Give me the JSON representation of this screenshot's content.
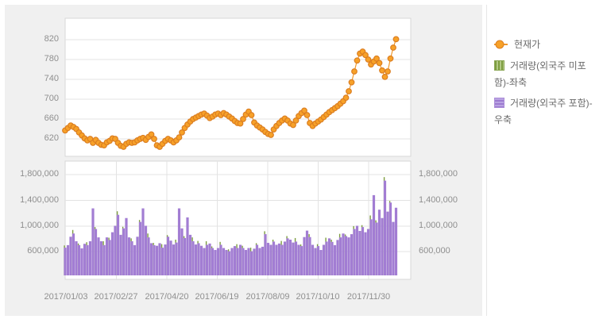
{
  "colors": {
    "price_fill": "#F7A128",
    "price_stroke": "#DB7E22",
    "price_line": "#EF982C",
    "volume_purple": "#A27DD3",
    "volume_green": "#7D9D40",
    "gridline": "#e3e3e3",
    "plot_border": "#d7d7d7",
    "axis_text": "#8f8f8f"
  },
  "legend": {
    "items": [
      {
        "label": "현재가",
        "marker": "orange-line-dot-marker",
        "color": "#F7A128"
      },
      {
        "label": "거래량(외국주 미포함)-좌축",
        "marker": "green-striped-swatch",
        "color": "#7D9D40"
      },
      {
        "label": "거래량(외국주 포함)-우축",
        "marker": "purple-striped-swatch",
        "color": "#A27DD3"
      }
    ]
  },
  "chart_data": [
    {
      "type": "line",
      "name": "현재가",
      "marker": "circle",
      "color": "#F7A128",
      "y_ticks": [
        620,
        660,
        700,
        740,
        780,
        820
      ],
      "y_tick_labels": [
        "820",
        "780",
        "740",
        "700",
        "660",
        "620"
      ],
      "ylim": [
        584,
        862
      ],
      "grid": "horizontal",
      "values": [
        637,
        642,
        647,
        644,
        640,
        633,
        627,
        621,
        617,
        620,
        612,
        618,
        612,
        608,
        607,
        613,
        616,
        621,
        620,
        612,
        606,
        604,
        610,
        613,
        612,
        613,
        617,
        620,
        622,
        618,
        624,
        629,
        620,
        607,
        604,
        610,
        616,
        620,
        617,
        613,
        617,
        623,
        633,
        642,
        649,
        655,
        660,
        663,
        666,
        669,
        671,
        667,
        662,
        665,
        669,
        671,
        668,
        672,
        669,
        665,
        661,
        656,
        652,
        651,
        660,
        669,
        675,
        668,
        653,
        647,
        643,
        639,
        634,
        630,
        628,
        639,
        646,
        652,
        657,
        661,
        657,
        651,
        648,
        657,
        666,
        672,
        677,
        668,
        652,
        646,
        651,
        655,
        659,
        664,
        669,
        674,
        678,
        682,
        686,
        691,
        696,
        703,
        716,
        734,
        756,
        778,
        792,
        796,
        789,
        780,
        770,
        776,
        782,
        773,
        758,
        745,
        756,
        782,
        804,
        821
      ]
    },
    {
      "type": "bar",
      "x_tick_labels": [
        "2017/01/03",
        "2017/02/27",
        "2017/04/20",
        "2017/06/19",
        "2017/08/09",
        "2017/10/10",
        "2017/11/30"
      ],
      "y_ticks": [
        600000,
        1000000,
        1400000,
        1800000
      ],
      "y_tick_labels": [
        "1,800,000",
        "1,400,000",
        "1,000,000",
        "600,000"
      ],
      "ylim": [
        231000,
        2030000
      ],
      "dual_axis": true,
      "grid": "both",
      "series": [
        {
          "name": "거래량(외국주 포함)-우축",
          "color": "#A27DD3",
          "values": [
            660000,
            700000,
            830000,
            880000,
            760000,
            700000,
            650000,
            720000,
            700000,
            760000,
            1270000,
            950000,
            820000,
            760000,
            700000,
            820000,
            780000,
            900000,
            1000000,
            1170000,
            860000,
            960000,
            1120000,
            820000,
            760000,
            700000,
            830000,
            1060000,
            1270000,
            1000000,
            820000,
            730000,
            700000,
            690000,
            730000,
            660000,
            710000,
            830000,
            770000,
            710000,
            740000,
            1270000,
            960000,
            810000,
            1130000,
            860000,
            760000,
            710000,
            730000,
            690000,
            655000,
            705000,
            725000,
            655000,
            625000,
            655000,
            705000,
            655000,
            625000,
            605000,
            655000,
            685000,
            655000,
            705000,
            655000,
            625000,
            655000,
            605000,
            645000,
            705000,
            655000,
            675000,
            870000,
            735000,
            705000,
            755000,
            705000,
            725000,
            705000,
            755000,
            805000,
            785000,
            740000,
            755000,
            705000,
            685000,
            825000,
            925000,
            825000,
            705000,
            655000,
            685000,
            625000,
            705000,
            755000,
            805000,
            750000,
            700000,
            780000,
            820000,
            880000,
            840000,
            820000,
            870000,
            950000,
            1000000,
            920000,
            980000,
            900000,
            950000,
            1100000,
            1475000,
            1050000,
            1250000,
            1120000,
            1700000,
            1220000,
            1360000,
            1060000,
            1280000
          ]
        },
        {
          "name": "거래량(외국주 미포함)-좌축",
          "color": "#7D9D40",
          "delta_above_included_pattern": [
            35000,
            0,
            0,
            55000,
            0,
            25000,
            0,
            0,
            45000,
            0,
            0,
            30000,
            0,
            0,
            60000,
            0
          ]
        }
      ]
    }
  ]
}
